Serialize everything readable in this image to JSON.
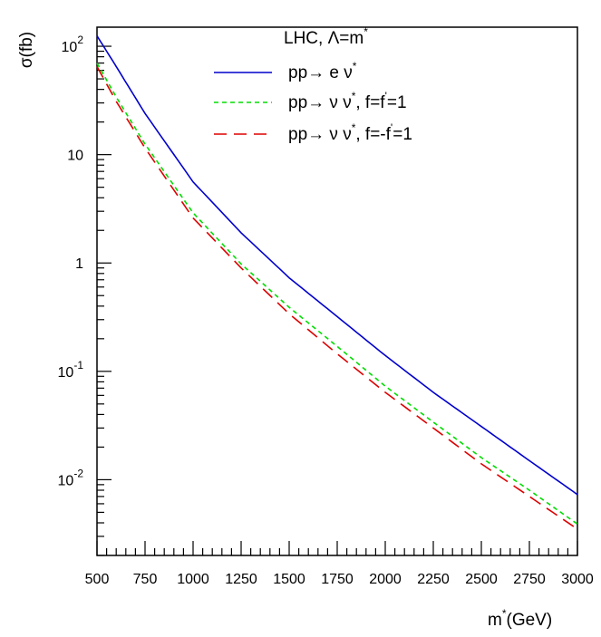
{
  "chart_data": {
    "type": "line",
    "y_scale": "log",
    "x_ticks": [
      500,
      750,
      1000,
      1250,
      1500,
      1750,
      2000,
      2250,
      2500,
      2750,
      3000
    ],
    "xlim": [
      500,
      3000
    ],
    "ylim": [
      0.002,
      150
    ],
    "xlabel": {
      "base": "m",
      "sup": "*",
      "rest": "(GeV)"
    },
    "ylabel": "σ(fb)",
    "y_ticks": [
      {
        "value": 100,
        "base": "10",
        "sup": "2"
      },
      {
        "value": 10,
        "base": "10",
        "sup": ""
      },
      {
        "value": 1,
        "base": "1",
        "sup": ""
      },
      {
        "value": 0.1,
        "base": "10",
        "sup": "-1"
      },
      {
        "value": 0.01,
        "base": "10",
        "sup": "-2"
      }
    ],
    "legend_header": {
      "text": "LHC, Λ=m",
      "sup": "*"
    },
    "legend_position": "top-right",
    "grid": false,
    "series": [
      {
        "label_parts": [
          "pp→  e ν",
          "*",
          ""
        ],
        "color": "#0000cc",
        "style": "solid",
        "x": [
          500,
          600,
          750,
          1000,
          1250,
          1500,
          1750,
          2000,
          2250,
          2500,
          2750,
          3000
        ],
        "y": [
          125,
          65,
          24,
          5.6,
          1.9,
          0.73,
          0.32,
          0.14,
          0.064,
          0.031,
          0.015,
          0.0073
        ]
      },
      {
        "label_parts": [
          "pp→  ν ν",
          "*",
          ", f=f",
          "'",
          "=1"
        ],
        "color": "#00dd00",
        "style": "dotted",
        "x": [
          500,
          600,
          750,
          1000,
          1250,
          1500,
          1750,
          2000,
          2250,
          2500,
          2750,
          3000
        ],
        "y": [
          70,
          34,
          12.5,
          2.9,
          0.98,
          0.39,
          0.17,
          0.073,
          0.034,
          0.016,
          0.008,
          0.0039
        ]
      },
      {
        "label_parts": [
          "pp→  ν ν",
          "*",
          ", f=-f",
          "'",
          "=1"
        ],
        "color": "#dd0000",
        "style": "dashed",
        "x": [
          500,
          600,
          750,
          1000,
          1250,
          1500,
          1750,
          2000,
          2250,
          2500,
          2750,
          3000
        ],
        "y": [
          65,
          31,
          11.5,
          2.6,
          0.9,
          0.34,
          0.145,
          0.064,
          0.03,
          0.014,
          0.007,
          0.0035
        ]
      }
    ]
  }
}
